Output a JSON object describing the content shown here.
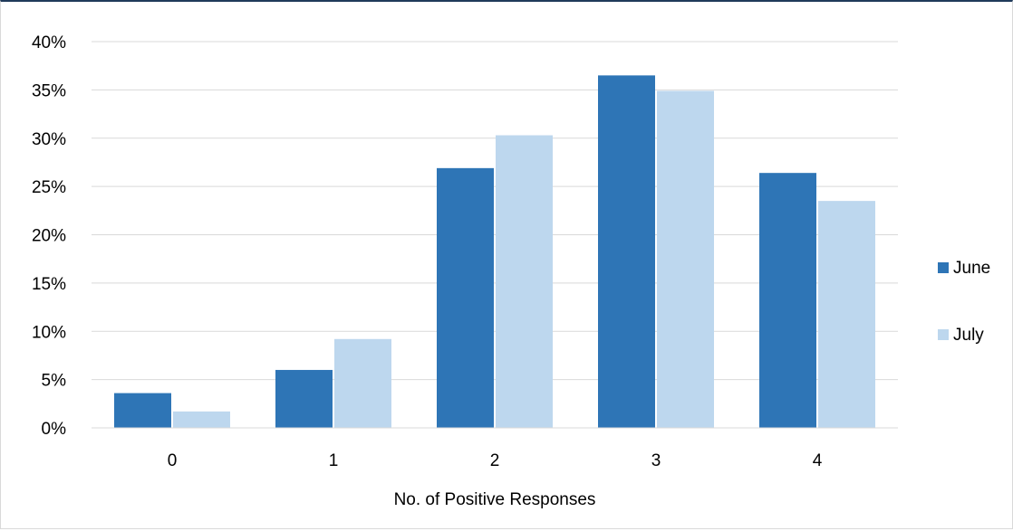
{
  "chart_data": {
    "type": "bar",
    "title": "",
    "xlabel": "No. of Positive Responses",
    "ylabel": "",
    "categories": [
      "0",
      "1",
      "2",
      "3",
      "4"
    ],
    "series": [
      {
        "name": "June",
        "values": [
          3.6,
          6.0,
          26.9,
          36.5,
          26.4
        ],
        "color": "#2e75b6"
      },
      {
        "name": "July",
        "values": [
          1.7,
          9.2,
          30.3,
          34.9,
          23.5
        ],
        "color": "#bdd7ee"
      }
    ],
    "ylim": [
      0,
      40
    ],
    "yticks": [
      0,
      5,
      10,
      15,
      20,
      25,
      30,
      35,
      40
    ],
    "ytick_labels": [
      "0%",
      "5%",
      "10%",
      "15%",
      "20%",
      "25%",
      "30%",
      "35%",
      "40%"
    ],
    "grid": true,
    "legend_position": "right"
  }
}
